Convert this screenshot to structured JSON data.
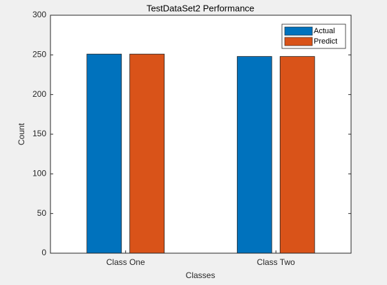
{
  "chart_data": {
    "type": "bar",
    "title": "TestDataSet2 Performance",
    "x_label": "Classes",
    "y_label": "Count",
    "categories": [
      "Class One",
      "Class Two"
    ],
    "series": [
      {
        "name": "Actual",
        "color": "#0072bd",
        "values": [
          251,
          248
        ]
      },
      {
        "name": "Predict",
        "color": "#d95319",
        "values": [
          251,
          248
        ]
      }
    ],
    "ylim": [
      0,
      300
    ],
    "yticks": [
      0,
      50,
      100,
      150,
      200,
      250,
      300
    ],
    "legend": "upper-right"
  }
}
